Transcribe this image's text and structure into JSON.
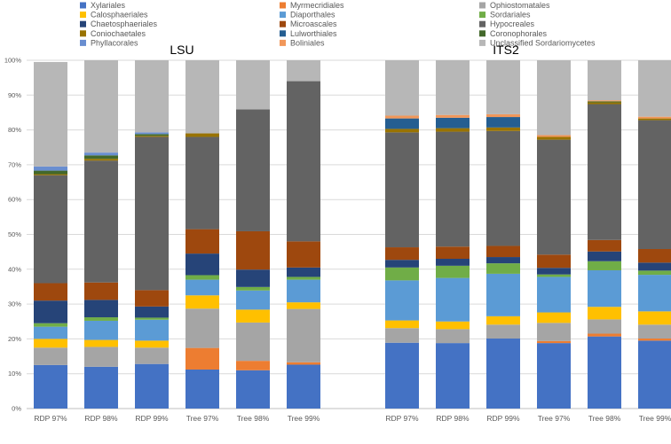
{
  "chart_data": {
    "type": "bar",
    "stacked": true,
    "percent": true,
    "ylim": [
      0,
      100
    ],
    "yticks": [
      "0%",
      "10%",
      "20%",
      "30%",
      "40%",
      "50%",
      "60%",
      "70%",
      "80%",
      "90%",
      "100%"
    ],
    "grid": true,
    "legend_position": "top",
    "order": [
      "Xylariales",
      "Myrmecridiales",
      "Ophiostomatales",
      "Calosphaeriales",
      "Diaporthales",
      "Sordariales",
      "Chaetosphaeriales",
      "Microascales",
      "Hypocreales",
      "Coniochaetales",
      "Lulworthiales",
      "Coronophorales",
      "Phyllacorales",
      "Boliniales",
      "Unclassified Sordariomycetes"
    ],
    "legend": [
      {
        "key": "Xylariales",
        "label": "Xylariales",
        "color": "#4472C4"
      },
      {
        "key": "Myrmecridiales",
        "label": "Myrmecridiales",
        "color": "#ED7D31"
      },
      {
        "key": "Ophiostomatales",
        "label": "Ophiostomatales",
        "color": "#A5A5A5"
      },
      {
        "key": "Calosphaeriales",
        "label": "Calosphaeriales",
        "color": "#FFC000"
      },
      {
        "key": "Diaporthales",
        "label": "Diaporthales",
        "color": "#5B9BD5"
      },
      {
        "key": "Sordariales",
        "label": "Sordariales",
        "color": "#70AD47"
      },
      {
        "key": "Chaetosphaeriales",
        "label": "Chaetosphaeriales",
        "color": "#264478"
      },
      {
        "key": "Microascales",
        "label": "Microascales",
        "color": "#9E480E"
      },
      {
        "key": "Hypocreales",
        "label": "Hypocreales",
        "color": "#636363"
      },
      {
        "key": "Coniochaetales",
        "label": "Coniochaetales",
        "color": "#997300"
      },
      {
        "key": "Lulworthiales",
        "label": "Lulworthiales",
        "color": "#255E91"
      },
      {
        "key": "Coronophorales",
        "label": "Coronophorales",
        "color": "#43682B"
      },
      {
        "key": "Phyllacorales",
        "label": "Phyllacorales",
        "color": "#698ED0"
      },
      {
        "key": "Boliniales",
        "label": "Boliniales",
        "color": "#F1975A"
      },
      {
        "key": "Unclassified Sordariomycetes",
        "label": "Unclassified Sordariomycetes",
        "color": "#B7B7B7"
      }
    ],
    "panels": [
      {
        "title": "LSU",
        "categories": [
          "RDP 97%",
          "RDP 98%",
          "RDP 99%",
          "Tree 97%",
          "Tree 98%",
          "Tree 99%"
        ],
        "bars": [
          [
            12.5,
            0,
            5.0,
            2.5,
            3.5,
            1.0,
            6.5,
            5.0,
            31.0,
            0.3,
            0,
            1.0,
            1.2,
            0,
            30.0
          ],
          [
            12.0,
            0,
            5.7,
            2.0,
            5.5,
            1.0,
            5.0,
            5.0,
            35.0,
            0.5,
            0,
            1.0,
            0.8,
            0,
            26.5
          ],
          [
            12.8,
            0,
            4.7,
            2.0,
            6.0,
            0.6,
            3.2,
            4.7,
            44.0,
            0.3,
            0,
            0.5,
            0.5,
            0,
            20.7
          ],
          [
            11.2,
            6.2,
            11.3,
            3.8,
            4.5,
            1.3,
            6.2,
            7.0,
            26.5,
            1.0,
            0,
            0,
            0,
            0,
            21.0
          ],
          [
            11.0,
            2.7,
            11.0,
            3.7,
            5.5,
            1.0,
            5.0,
            11.0,
            35.0,
            0,
            0,
            0,
            0,
            0,
            14.1
          ],
          [
            12.6,
            0.7,
            15.3,
            1.9,
            6.5,
            0.8,
            2.7,
            7.5,
            46.0,
            0,
            0,
            0,
            0,
            0,
            6.0
          ]
        ]
      },
      {
        "title": "ITS2",
        "categories": [
          "RDP 97%",
          "RDP 98%",
          "RDP 99%",
          "Tree 97%",
          "Tree 98%",
          "Tree 99%"
        ],
        "bars": [
          [
            18.9,
            0,
            4.2,
            2.2,
            11.5,
            3.7,
            2.2,
            3.6,
            33.0,
            1.0,
            3.0,
            0,
            0,
            0.8,
            15.9
          ],
          [
            18.8,
            0,
            4.0,
            2.2,
            12.5,
            3.5,
            2.0,
            3.5,
            33.0,
            1.0,
            3.0,
            0,
            0,
            0.8,
            15.7
          ],
          [
            20.1,
            0,
            4.0,
            2.4,
            12.2,
            3.0,
            1.8,
            3.2,
            33.0,
            1.0,
            3.0,
            0,
            0,
            0.8,
            15.5
          ],
          [
            18.8,
            0.6,
            5.2,
            3.0,
            10.2,
            0.7,
            1.9,
            3.8,
            33.0,
            0.8,
            0,
            0,
            0,
            0.5,
            21.5
          ],
          [
            20.7,
            0.8,
            4.1,
            3.6,
            10.5,
            2.6,
            2.8,
            3.3,
            39.0,
            0.5,
            0,
            0.3,
            0,
            0.3,
            11.5
          ],
          [
            19.5,
            0.6,
            4.0,
            3.8,
            10.5,
            1.2,
            2.3,
            3.9,
            37.0,
            0.5,
            0,
            0,
            0,
            0.5,
            16.2
          ]
        ]
      }
    ]
  }
}
